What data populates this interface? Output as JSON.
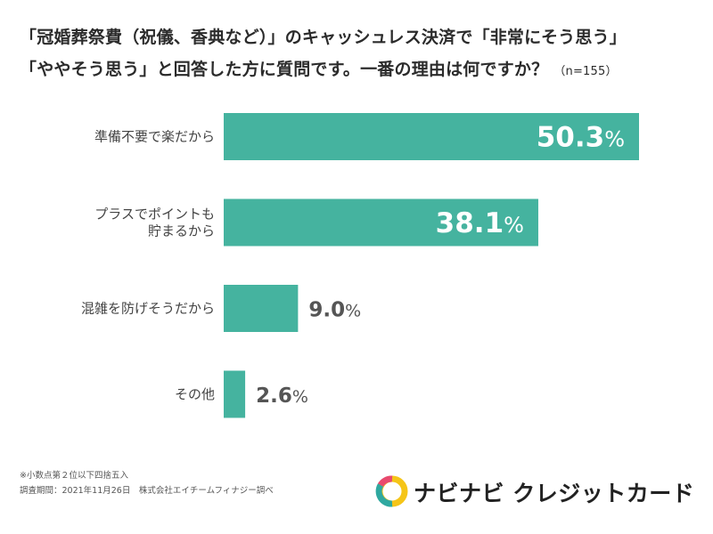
{
  "title": {
    "line1": "「冠婚葬祭費（祝儀、香典など）」のキャッシュレス決済で「非常にそう思う」",
    "line2": "「ややそう思う」と回答した方に質問です。一番の理由は何ですか？",
    "n_label": "（n=155）"
  },
  "chart_data": {
    "type": "bar",
    "orientation": "horizontal",
    "categories": [
      [
        "準備不要で楽だから"
      ],
      [
        "プラスでポイントも",
        "貯まるから"
      ],
      [
        "混雑を防げそうだから"
      ],
      [
        "その他"
      ]
    ],
    "values": [
      50.3,
      38.1,
      9.0,
      2.6
    ],
    "value_labels": [
      "50.3",
      "38.1",
      "9.0",
      "2.6"
    ],
    "unit": "%",
    "xlim": [
      0,
      50.3
    ],
    "bar_color": "#45b39f",
    "label_inside_color": "#ffffff",
    "label_outside_color": "#555555"
  },
  "notes": {
    "line1": "※小数点第２位以下四捨五入",
    "line2": "調査期間：2021年11月26日　株式会社エイチームフィナジー調べ"
  },
  "logo": {
    "text": "ナビナビ クレジットカード"
  },
  "colors": {
    "logo_ring_yellow": "#f5c518",
    "logo_ring_teal": "#2fa8a0",
    "logo_ring_pink": "#e84a6e"
  }
}
